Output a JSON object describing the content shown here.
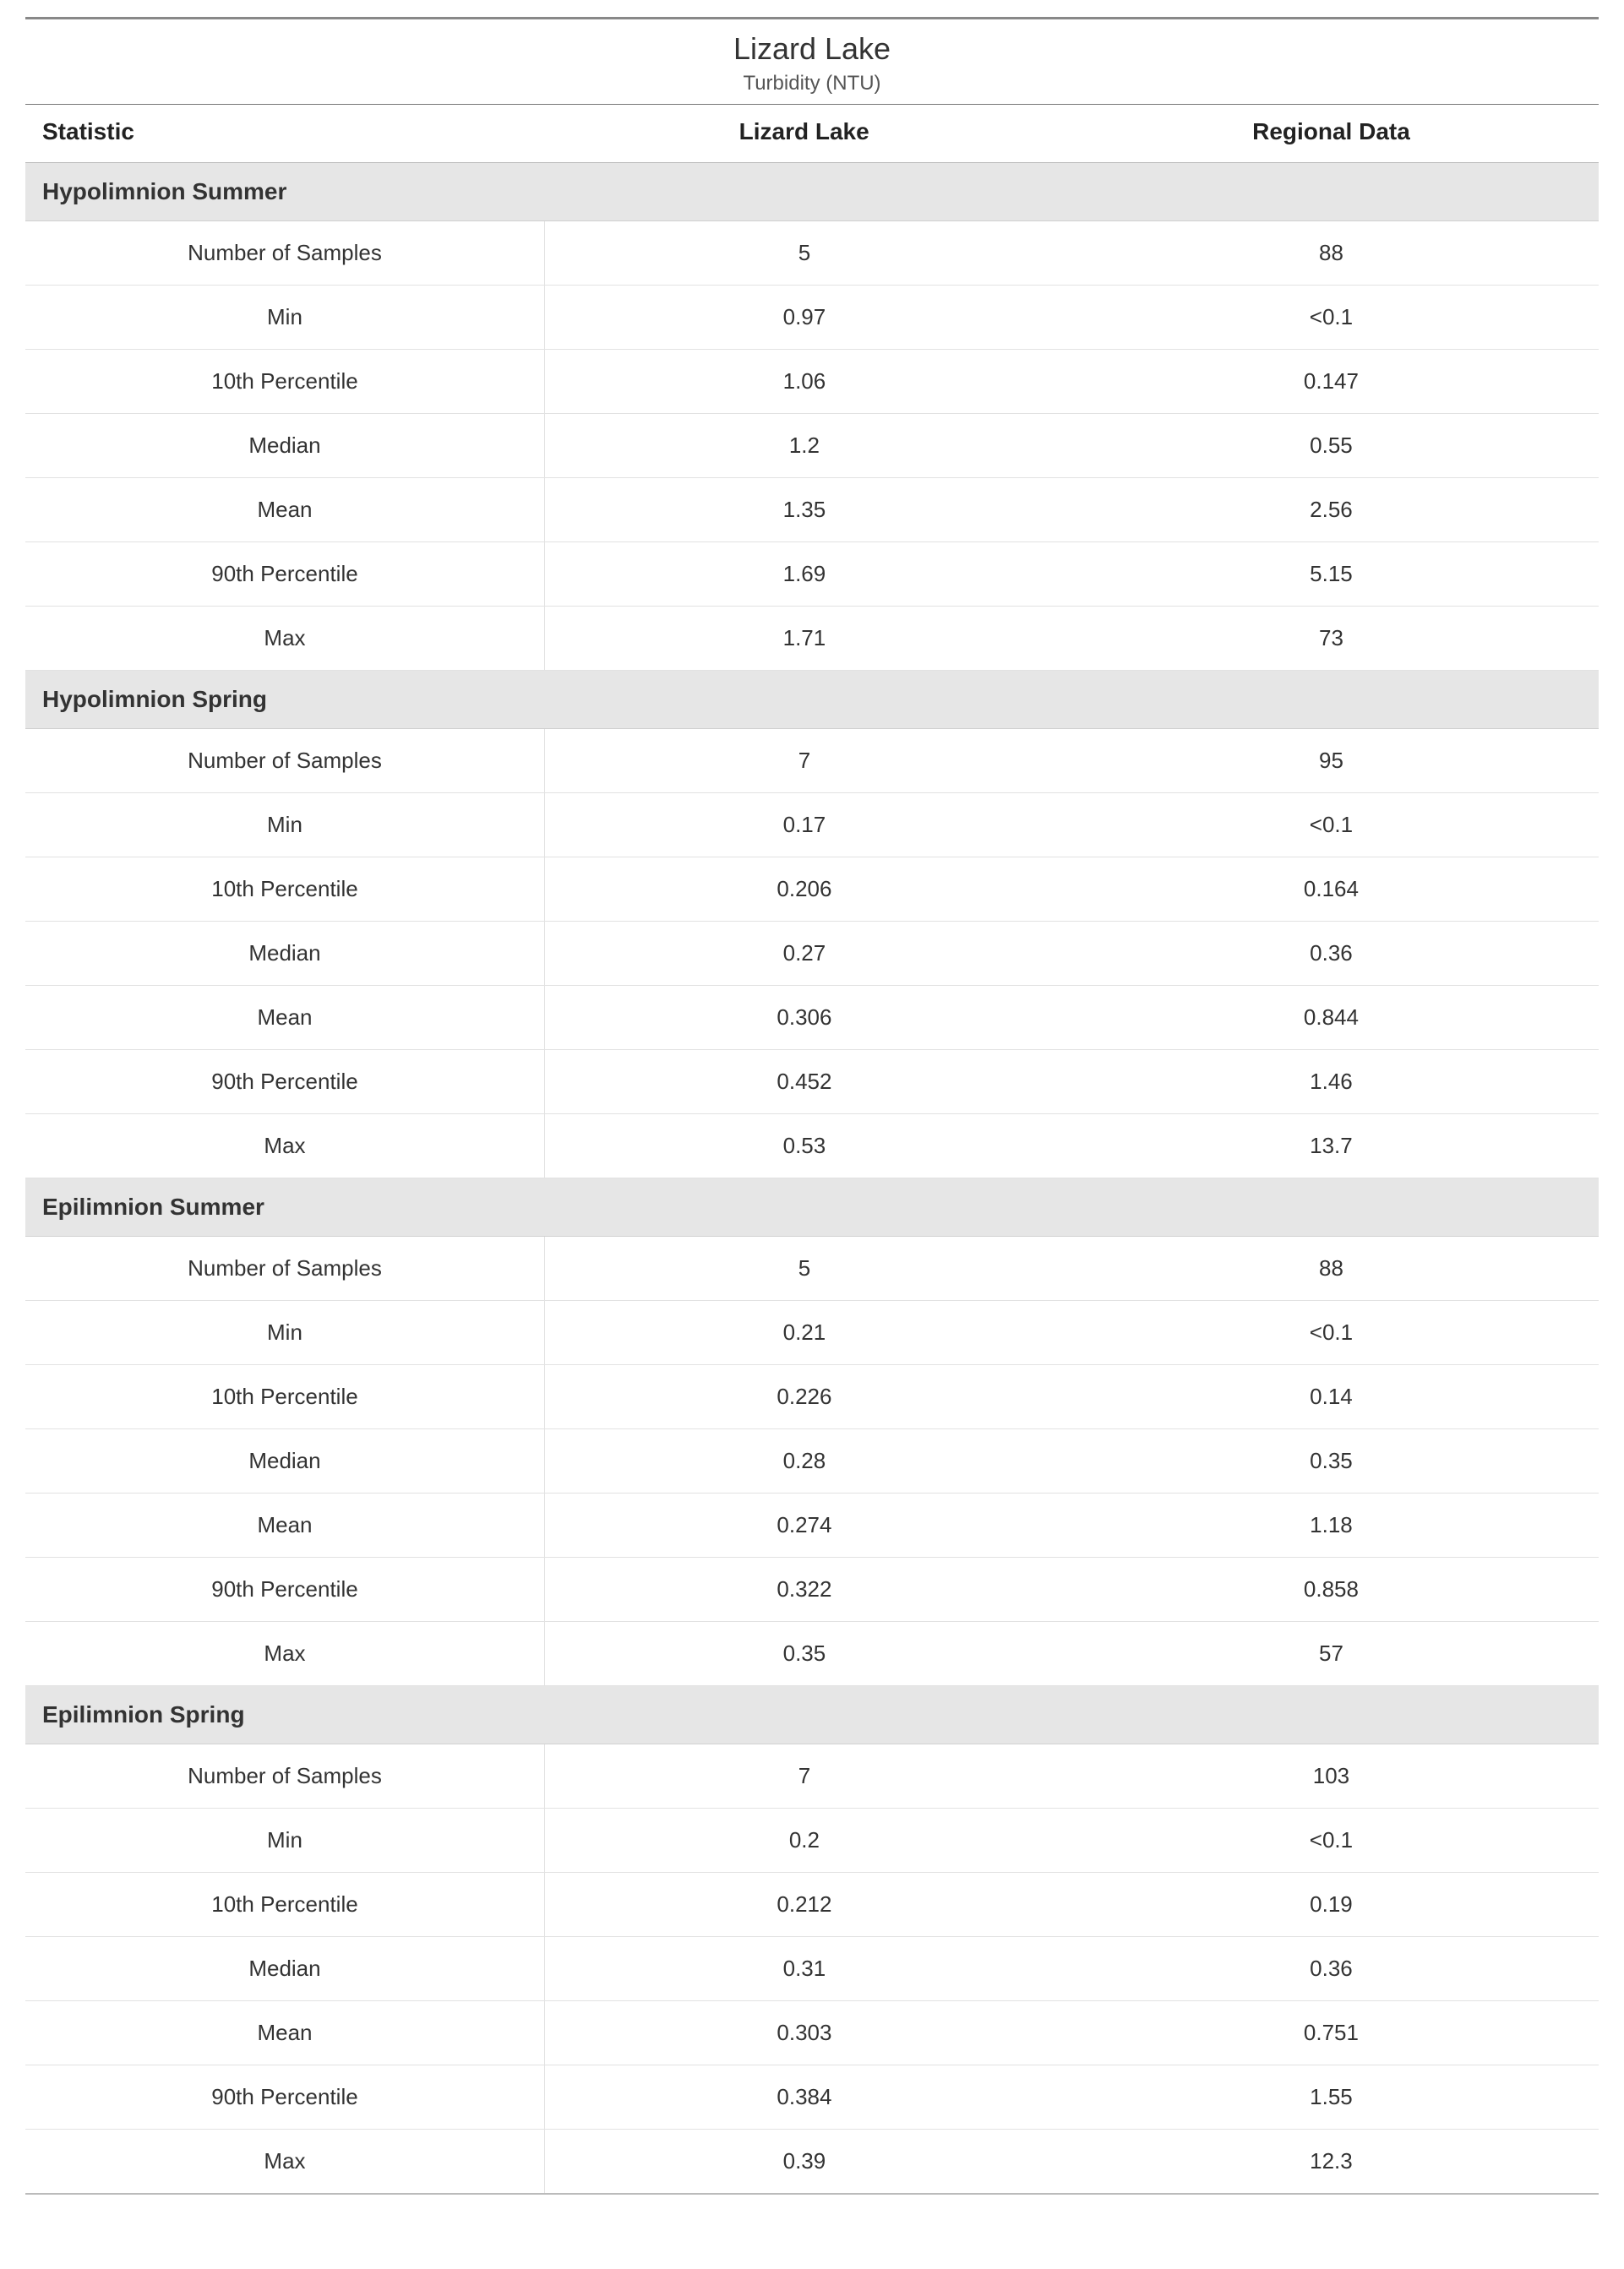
{
  "header": {
    "title": "Lizard Lake",
    "subtitle": "Turbidity (NTU)"
  },
  "columns": {
    "c1": "Statistic",
    "c2": "Lizard Lake",
    "c3": "Regional Data"
  },
  "sections": [
    {
      "name": "Hypolimnion Summer",
      "rows": [
        {
          "stat": "Number of Samples",
          "v1": "5",
          "v2": "88"
        },
        {
          "stat": "Min",
          "v1": "0.97",
          "v2": "<0.1"
        },
        {
          "stat": "10th Percentile",
          "v1": "1.06",
          "v2": "0.147"
        },
        {
          "stat": "Median",
          "v1": "1.2",
          "v2": "0.55"
        },
        {
          "stat": "Mean",
          "v1": "1.35",
          "v2": "2.56"
        },
        {
          "stat": "90th Percentile",
          "v1": "1.69",
          "v2": "5.15"
        },
        {
          "stat": "Max",
          "v1": "1.71",
          "v2": "73"
        }
      ]
    },
    {
      "name": "Hypolimnion Spring",
      "rows": [
        {
          "stat": "Number of Samples",
          "v1": "7",
          "v2": "95"
        },
        {
          "stat": "Min",
          "v1": "0.17",
          "v2": "<0.1"
        },
        {
          "stat": "10th Percentile",
          "v1": "0.206",
          "v2": "0.164"
        },
        {
          "stat": "Median",
          "v1": "0.27",
          "v2": "0.36"
        },
        {
          "stat": "Mean",
          "v1": "0.306",
          "v2": "0.844"
        },
        {
          "stat": "90th Percentile",
          "v1": "0.452",
          "v2": "1.46"
        },
        {
          "stat": "Max",
          "v1": "0.53",
          "v2": "13.7"
        }
      ]
    },
    {
      "name": "Epilimnion Summer",
      "rows": [
        {
          "stat": "Number of Samples",
          "v1": "5",
          "v2": "88"
        },
        {
          "stat": "Min",
          "v1": "0.21",
          "v2": "<0.1"
        },
        {
          "stat": "10th Percentile",
          "v1": "0.226",
          "v2": "0.14"
        },
        {
          "stat": "Median",
          "v1": "0.28",
          "v2": "0.35"
        },
        {
          "stat": "Mean",
          "v1": "0.274",
          "v2": "1.18"
        },
        {
          "stat": "90th Percentile",
          "v1": "0.322",
          "v2": "0.858"
        },
        {
          "stat": "Max",
          "v1": "0.35",
          "v2": "57"
        }
      ]
    },
    {
      "name": "Epilimnion Spring",
      "rows": [
        {
          "stat": "Number of Samples",
          "v1": "7",
          "v2": "103"
        },
        {
          "stat": "Min",
          "v1": "0.2",
          "v2": "<0.1"
        },
        {
          "stat": "10th Percentile",
          "v1": "0.212",
          "v2": "0.19"
        },
        {
          "stat": "Median",
          "v1": "0.31",
          "v2": "0.36"
        },
        {
          "stat": "Mean",
          "v1": "0.303",
          "v2": "0.751"
        },
        {
          "stat": "90th Percentile",
          "v1": "0.384",
          "v2": "1.55"
        },
        {
          "stat": "Max",
          "v1": "0.39",
          "v2": "12.3"
        }
      ]
    }
  ],
  "styling": {
    "type": "table",
    "background_color": "#ffffff",
    "section_bg": "#e6e6e6",
    "row_border_color": "#e2e2e2",
    "header_border_top": "#888888",
    "title_fontsize": 36,
    "subtitle_fontsize": 24,
    "header_fontsize": 28,
    "cell_fontsize": 26,
    "column_widths_pct": [
      33,
      33,
      34
    ]
  }
}
